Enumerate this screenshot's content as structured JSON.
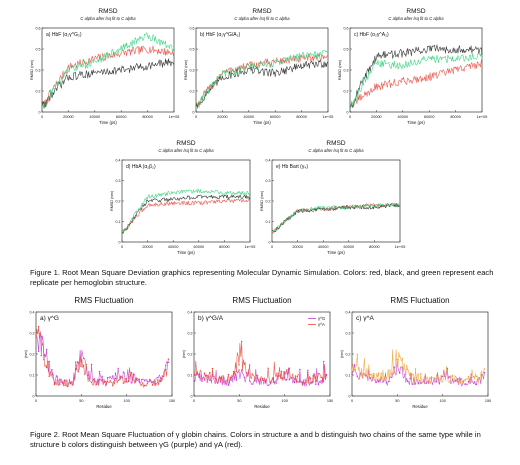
{
  "rmsd_panels": [
    {
      "title": "RMSD",
      "subtitle": "C alpha after lsq fit to C alpha",
      "panel_label": "a) HbF (α₂γ^G₂)",
      "x_label": "Time (ps)",
      "y_label": "RMSD (nm)"
    },
    {
      "title": "RMSD",
      "subtitle": "C alpha after lsq fit to C alpha",
      "panel_label": "b) HbF (α₂γ^G/A₂)",
      "x_label": "Time (ps)",
      "y_label": "RMSD (nm)"
    },
    {
      "title": "RMSD",
      "subtitle": "C alpha after lsq fit to C alpha",
      "panel_label": "c) HbF (α₂γ^A₂)",
      "x_label": "Time (ps)",
      "y_label": "RMSD (nm)"
    },
    {
      "title": "RMSD",
      "subtitle": "C alpha after lsq fit to C alpha",
      "panel_label": "d) HbA (α₂β₂)",
      "x_label": "Time (ps)",
      "y_label": "RMSD (nm)"
    },
    {
      "title": "RMSD",
      "subtitle": "C alpha after lsq fit to C alpha",
      "panel_label": "e) Hb Bart (γ₄)",
      "x_label": "Time (ps)",
      "y_label": "RMSD (nm)"
    }
  ],
  "rmsf_panels": [
    {
      "title": "RMS Fluctuation",
      "panel_label": "a) γ^G",
      "x_label": "Residue",
      "y_label": "(nm)"
    },
    {
      "title": "RMS Fluctuation",
      "panel_label": "b) γ^G/A",
      "x_label": "Residue",
      "y_label": "(nm)",
      "legend": [
        "γ^G",
        "γ^A"
      ]
    },
    {
      "title": "RMS Fluctuation",
      "panel_label": "c) γ^A",
      "x_label": "Residue",
      "y_label": "(nm)"
    }
  ],
  "captions": {
    "figure1": "Figure 1. Root Mean Square Deviation graphics representing Molecular Dynamic Simulation. Colors: red, black, and green represent each replicate per hemoglobin structure.",
    "figure2": "Figure 2. Root Mean Square Fluctuation of γ globin chains. Colors in structure a and b distinguish two chains of the same type while in structure b colors distinguish between γG (purple) and γA (red)."
  },
  "colors": {
    "red": "#e8483c",
    "black": "#222222",
    "green": "#2fd27a",
    "purple": "#c43ad8",
    "orange": "#f0a23a"
  },
  "chart_data": [
    {
      "type": "line",
      "title": "RMSD",
      "panel": "a",
      "x": [
        0,
        20000,
        40000,
        60000,
        80000,
        100000
      ],
      "xlim": [
        0,
        100000
      ],
      "ylim": [
        0,
        0.6
      ],
      "xticks": [
        "0",
        "20000",
        "40000",
        "60000",
        "80000",
        "1e+05"
      ],
      "series": [
        {
          "color": "red",
          "values": [
            0.05,
            0.32,
            0.38,
            0.42,
            0.45,
            0.42
          ]
        },
        {
          "color": "black",
          "values": [
            0.05,
            0.25,
            0.28,
            0.3,
            0.33,
            0.36
          ]
        },
        {
          "color": "green",
          "values": [
            0.05,
            0.3,
            0.36,
            0.45,
            0.55,
            0.45
          ]
        }
      ]
    },
    {
      "type": "line",
      "title": "RMSD",
      "panel": "b",
      "x": [
        0,
        20000,
        40000,
        60000,
        80000,
        100000
      ],
      "xlim": [
        0,
        100000
      ],
      "ylim": [
        0,
        0.6
      ],
      "xticks": [
        "0",
        "20000",
        "40000",
        "60000",
        "80000",
        "1e+05"
      ],
      "series": [
        {
          "color": "red",
          "values": [
            0.05,
            0.28,
            0.33,
            0.36,
            0.38,
            0.4
          ]
        },
        {
          "color": "black",
          "values": [
            0.05,
            0.25,
            0.3,
            0.28,
            0.33,
            0.35
          ]
        },
        {
          "color": "green",
          "values": [
            0.05,
            0.27,
            0.32,
            0.35,
            0.4,
            0.42
          ]
        }
      ]
    },
    {
      "type": "line",
      "title": "RMSD",
      "panel": "c",
      "x": [
        0,
        20000,
        40000,
        60000,
        80000,
        100000
      ],
      "xlim": [
        0,
        100000
      ],
      "ylim": [
        0,
        0.6
      ],
      "xticks": [
        "0",
        "20000",
        "40000",
        "60000",
        "80000",
        "1e+05"
      ],
      "series": [
        {
          "color": "red",
          "values": [
            0.05,
            0.18,
            0.22,
            0.25,
            0.3,
            0.35
          ]
        },
        {
          "color": "black",
          "values": [
            0.05,
            0.4,
            0.42,
            0.45,
            0.45,
            0.44
          ]
        },
        {
          "color": "green",
          "values": [
            0.05,
            0.35,
            0.33,
            0.38,
            0.38,
            0.4
          ]
        }
      ]
    },
    {
      "type": "line",
      "title": "RMSD",
      "panel": "d",
      "x": [
        0,
        20000,
        40000,
        60000,
        80000,
        100000
      ],
      "xlim": [
        0,
        100000
      ],
      "ylim": [
        0,
        0.4
      ],
      "xticks": [
        "0",
        "20000",
        "40000",
        "60000",
        "80000",
        "1e+05"
      ],
      "series": [
        {
          "color": "red",
          "values": [
            0.05,
            0.18,
            0.19,
            0.19,
            0.2,
            0.2
          ]
        },
        {
          "color": "black",
          "values": [
            0.05,
            0.2,
            0.21,
            0.22,
            0.22,
            0.22
          ]
        },
        {
          "color": "green",
          "values": [
            0.05,
            0.22,
            0.24,
            0.25,
            0.24,
            0.24
          ]
        }
      ]
    },
    {
      "type": "line",
      "title": "RMSD",
      "panel": "e",
      "x": [
        0,
        20000,
        40000,
        60000,
        80000,
        100000
      ],
      "xlim": [
        0,
        100000
      ],
      "ylim": [
        0,
        0.4
      ],
      "xticks": [
        "0",
        "20000",
        "40000",
        "60000",
        "80000",
        "1e+05"
      ],
      "series": [
        {
          "color": "red",
          "values": [
            0.05,
            0.15,
            0.16,
            0.17,
            0.18,
            0.18
          ]
        },
        {
          "color": "black",
          "values": [
            0.05,
            0.15,
            0.16,
            0.17,
            0.17,
            0.18
          ]
        },
        {
          "color": "green",
          "values": [
            0.05,
            0.15,
            0.17,
            0.17,
            0.18,
            0.18
          ]
        }
      ]
    },
    {
      "type": "line",
      "title": "RMS Fluctuation",
      "panel": "a",
      "x": [
        0,
        20,
        40,
        50,
        60,
        80,
        100,
        120,
        140,
        146
      ],
      "xlim": [
        0,
        150
      ],
      "ylim": [
        0,
        0.4
      ],
      "xticks": [
        "0",
        "50",
        "100",
        "150"
      ],
      "series": [
        {
          "color": "purple",
          "values": [
            0.4,
            0.1,
            0.08,
            0.25,
            0.1,
            0.09,
            0.12,
            0.08,
            0.1,
            0.2
          ]
        },
        {
          "color": "red",
          "values": [
            0.38,
            0.09,
            0.07,
            0.22,
            0.09,
            0.08,
            0.11,
            0.07,
            0.09,
            0.18
          ]
        }
      ]
    },
    {
      "type": "line",
      "title": "RMS Fluctuation",
      "panel": "b",
      "x": [
        0,
        20,
        40,
        50,
        60,
        80,
        100,
        120,
        140,
        146
      ],
      "xlim": [
        0,
        150
      ],
      "ylim": [
        0,
        0.4
      ],
      "xticks": [
        "0",
        "50",
        "100",
        "150"
      ],
      "series": [
        {
          "name": "γG",
          "color": "purple",
          "values": [
            0.12,
            0.1,
            0.09,
            0.15,
            0.1,
            0.08,
            0.12,
            0.08,
            0.1,
            0.12
          ]
        },
        {
          "name": "γA",
          "color": "red",
          "values": [
            0.14,
            0.11,
            0.1,
            0.26,
            0.12,
            0.09,
            0.13,
            0.09,
            0.11,
            0.14
          ]
        }
      ]
    },
    {
      "type": "line",
      "title": "RMS Fluctuation",
      "panel": "c",
      "x": [
        0,
        20,
        40,
        50,
        60,
        80,
        100,
        120,
        140,
        146
      ],
      "xlim": [
        0,
        150
      ],
      "ylim": [
        0,
        0.4
      ],
      "xticks": [
        "0",
        "50",
        "100",
        "150"
      ],
      "series": [
        {
          "color": "purple",
          "values": [
            0.14,
            0.1,
            0.09,
            0.18,
            0.1,
            0.08,
            0.11,
            0.08,
            0.09,
            0.12
          ]
        },
        {
          "color": "orange",
          "values": [
            0.16,
            0.12,
            0.1,
            0.24,
            0.13,
            0.09,
            0.12,
            0.09,
            0.1,
            0.14
          ]
        }
      ]
    }
  ]
}
